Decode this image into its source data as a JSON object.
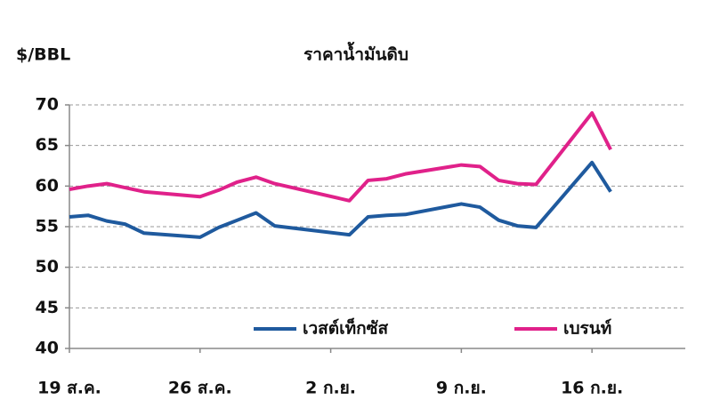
{
  "chart_data": {
    "type": "line",
    "title": "ราคาน้ำมันดิบ",
    "y_label": "$/BBL",
    "x": [
      0,
      1,
      2,
      3,
      4,
      7,
      8,
      9,
      10,
      11,
      15,
      16,
      17,
      18,
      21,
      22,
      23,
      24,
      25,
      28,
      29
    ],
    "xlim": [
      0,
      33
    ],
    "xticks": [
      {
        "value": 0,
        "label": "19 ส.ค."
      },
      {
        "value": 7,
        "label": "26 ส.ค."
      },
      {
        "value": 14,
        "label": "2 ก.ย."
      },
      {
        "value": 21,
        "label": "9 ก.ย."
      },
      {
        "value": 28,
        "label": "16 ก.ย."
      }
    ],
    "ylim": [
      40,
      70
    ],
    "yticks": [
      40,
      45,
      50,
      55,
      60,
      65,
      70
    ],
    "grid": true,
    "series": [
      {
        "name": "เวสต์เท็กซัส",
        "color": "#1f5a9e",
        "values": [
          56.2,
          56.4,
          55.7,
          55.3,
          54.2,
          53.7,
          54.9,
          55.8,
          56.7,
          55.1,
          54.0,
          56.2,
          56.4,
          56.5,
          57.8,
          57.4,
          55.8,
          55.1,
          54.9,
          62.9,
          59.3
        ]
      },
      {
        "name": "เบรนท์",
        "color": "#e0218a",
        "values": [
          59.6,
          60.0,
          60.3,
          59.8,
          59.3,
          58.7,
          59.5,
          60.5,
          61.1,
          60.3,
          58.2,
          60.7,
          60.9,
          61.5,
          62.6,
          62.4,
          60.7,
          60.3,
          60.2,
          69.0,
          64.5
        ]
      }
    ]
  }
}
